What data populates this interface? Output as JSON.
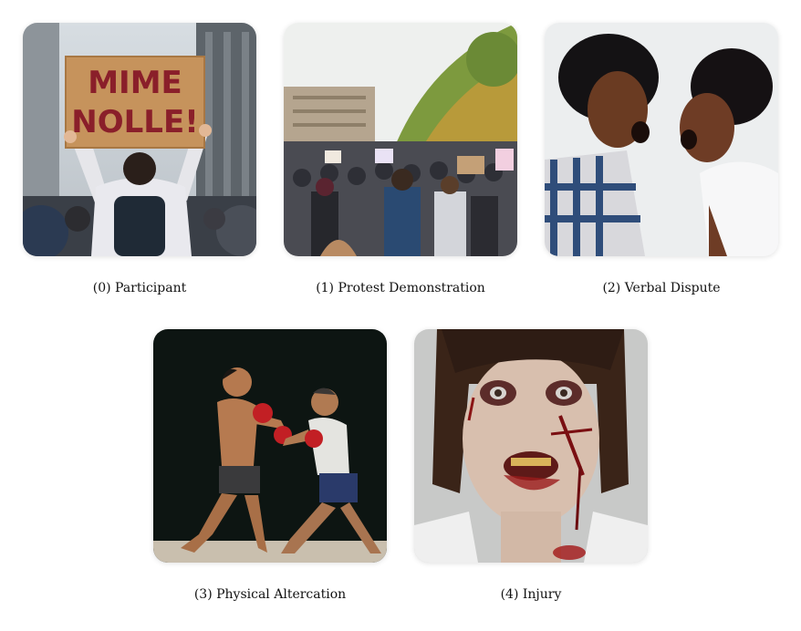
{
  "panels": [
    {
      "caption": "(0) Participant",
      "image": "protester-holding-sign-photo",
      "sign_line1": "MIME",
      "sign_line2": "NOLLE!"
    },
    {
      "caption": "(1) Protest Demonstration",
      "image": "crowd-march-street-photo"
    },
    {
      "caption": "(2) Verbal Dispute",
      "image": "two-people-shouting-photo"
    },
    {
      "caption": "(3) Physical Altercation",
      "image": "boxers-fighting-photo"
    },
    {
      "caption": "(4) Injury",
      "image": "wounded-woman-photo"
    }
  ]
}
